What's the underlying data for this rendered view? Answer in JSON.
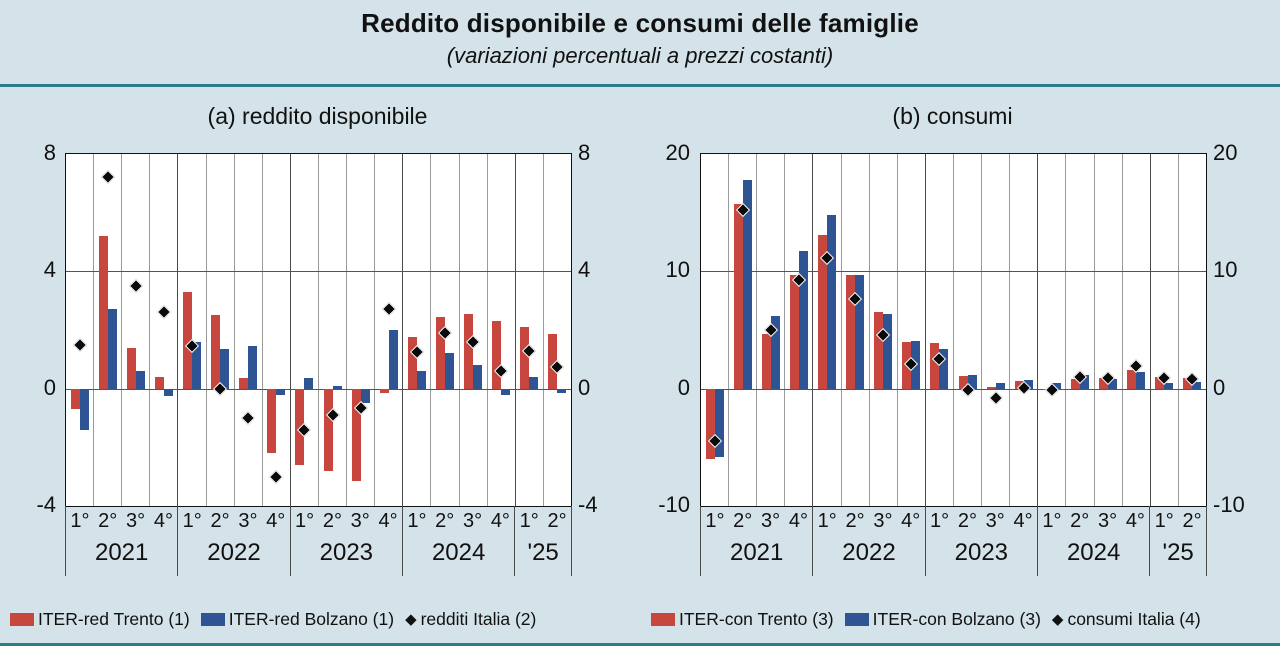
{
  "page": {
    "title": "Reddito disponibile e consumi delle famiglie",
    "subtitle": "(variazioni percentuali a prezzi costanti)",
    "background_color": "#d4e2e9",
    "rule_color": "#2e7b8d"
  },
  "colors": {
    "trento_red": "#c7463e",
    "bolzano_blue": "#2e5494",
    "italia_black": "#0a0a0a"
  },
  "chart_data": [
    {
      "type": "bar",
      "title": "(a) reddito disponibile",
      "ylim": [
        -4,
        8
      ],
      "y_ticks": [
        "8",
        "4",
        "0",
        "-4"
      ],
      "y_tick_values": [
        8,
        4,
        0,
        -4
      ],
      "gridline_y": 4,
      "grid": "vertical per quarter, horizontal at 4 and 0",
      "legend_position": "bottom-left",
      "years": [
        {
          "label": "2021",
          "quarters": [
            "1°",
            "2°",
            "3°",
            "4°"
          ]
        },
        {
          "label": "2022",
          "quarters": [
            "1°",
            "2°",
            "3°",
            "4°"
          ]
        },
        {
          "label": "2023",
          "quarters": [
            "1°",
            "2°",
            "3°",
            "4°"
          ]
        },
        {
          "label": "2024",
          "quarters": [
            "1°",
            "2°",
            "3°",
            "4°"
          ]
        },
        {
          "label": "'25",
          "quarters": [
            "1°",
            "2°"
          ]
        }
      ],
      "series": [
        {
          "name": "ITER-red Trento (1)",
          "kind": "bar",
          "color": "#c7463e",
          "values": [
            -0.7,
            5.2,
            1.4,
            0.4,
            3.3,
            2.5,
            0.35,
            -2.2,
            -2.6,
            -2.8,
            -3.15,
            -0.15,
            1.75,
            2.45,
            2.55,
            2.3,
            2.1,
            1.85
          ]
        },
        {
          "name": "ITER-red Bolzano (1)",
          "kind": "bar",
          "color": "#2e5494",
          "values": [
            -1.4,
            2.7,
            0.6,
            -0.25,
            1.6,
            1.35,
            1.45,
            -0.2,
            0.35,
            0.1,
            -0.5,
            2.0,
            0.6,
            1.2,
            0.8,
            -0.2,
            0.4,
            -0.15
          ]
        },
        {
          "name": "redditi Italia (2)",
          "kind": "diamond",
          "color": "#0a0a0a",
          "values": [
            1.5,
            7.2,
            3.5,
            2.6,
            1.45,
            0.0,
            -1.0,
            -3.0,
            -1.4,
            -0.9,
            -0.65,
            2.7,
            1.25,
            1.9,
            1.6,
            0.6,
            1.3,
            0.75
          ]
        }
      ]
    },
    {
      "type": "bar",
      "title": "(b) consumi",
      "ylim": [
        -10,
        20
      ],
      "y_ticks": [
        "20",
        "10",
        "0",
        "-10"
      ],
      "y_tick_values": [
        20,
        10,
        0,
        -10
      ],
      "gridline_y": 10,
      "grid": "vertical per quarter, horizontal at 10 and 0",
      "legend_position": "bottom-left",
      "years": [
        {
          "label": "2021",
          "quarters": [
            "1°",
            "2°",
            "3°",
            "4°"
          ]
        },
        {
          "label": "2022",
          "quarters": [
            "1°",
            "2°",
            "3°",
            "4°"
          ]
        },
        {
          "label": "2023",
          "quarters": [
            "1°",
            "2°",
            "3°",
            "4°"
          ]
        },
        {
          "label": "2024",
          "quarters": [
            "1°",
            "2°",
            "3°",
            "4°"
          ]
        },
        {
          "label": "'25",
          "quarters": [
            "1°",
            "2°"
          ]
        }
      ],
      "series": [
        {
          "name": "ITER-con Trento (3)",
          "kind": "bar",
          "color": "#c7463e",
          "values": [
            -6.0,
            15.7,
            4.7,
            9.7,
            13.1,
            9.7,
            6.5,
            4.0,
            3.9,
            1.05,
            0.1,
            0.65,
            -0.15,
            0.8,
            0.95,
            1.6,
            1.0,
            0.95
          ]
        },
        {
          "name": "ITER-con Bolzano (3)",
          "kind": "bar",
          "color": "#2e5494",
          "values": [
            -5.8,
            17.8,
            6.2,
            11.7,
            14.8,
            9.7,
            6.4,
            4.1,
            3.4,
            1.15,
            0.45,
            0.7,
            0.45,
            1.15,
            0.8,
            1.45,
            0.5,
            0.55
          ]
        },
        {
          "name": "consumi Italia (4)",
          "kind": "diamond",
          "color": "#0a0a0a",
          "values": [
            -4.5,
            15.2,
            5.0,
            9.3,
            11.1,
            7.6,
            4.6,
            2.1,
            2.5,
            -0.15,
            -0.8,
            0.05,
            -0.15,
            1.0,
            0.95,
            1.9,
            0.9,
            0.8
          ]
        }
      ]
    }
  ]
}
